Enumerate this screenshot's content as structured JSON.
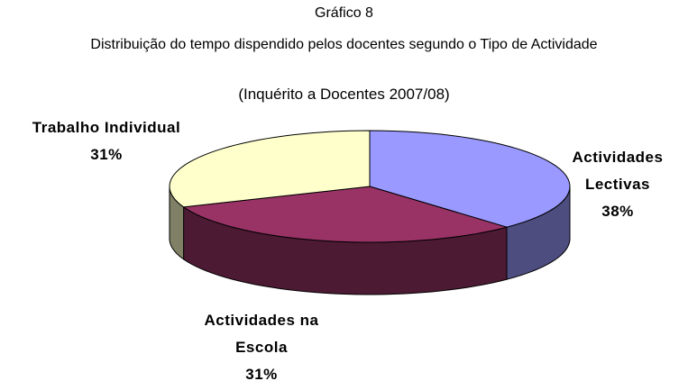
{
  "chart_data": {
    "type": "pie3d",
    "figure_label": "Gráfico 8",
    "title": "Distribuição do tempo dispendido pelos docentes segundo o Tipo de Actividade",
    "subtitle": "(Inquérito a Docentes 2007/08)",
    "categories": [
      "Actividades Lectivas",
      "Actividades na Escola",
      "Trabalho Individual"
    ],
    "values": [
      38,
      31,
      31
    ],
    "value_labels": [
      "38%",
      "31%",
      "31%"
    ],
    "colors": [
      "#9999ff",
      "#993366",
      "#ffffcc"
    ]
  }
}
